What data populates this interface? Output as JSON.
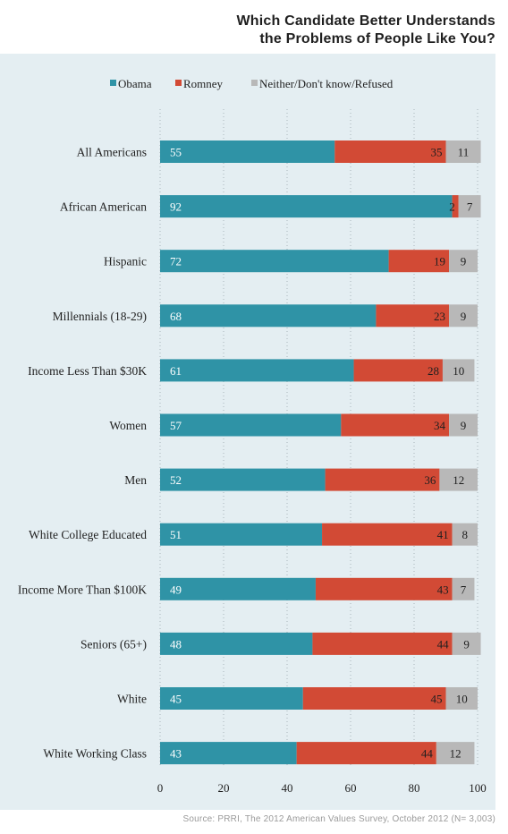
{
  "title_line1": "Which Candidate Better Understands",
  "title_line2": "the Problems of People Like You?",
  "source": "Source: PRRI, The 2012 American Values Survey, October 2012 (N= 3,003)",
  "chart_data": {
    "type": "bar",
    "stacked": true,
    "orientation": "horizontal",
    "categories": [
      "All Americans",
      "African American",
      "Hispanic",
      "Millennials (18-29)",
      "Income Less Than $30K",
      "Women",
      "Men",
      "White College Educated",
      "Income More Than $100K",
      "Seniors (65+)",
      "White",
      "White Working Class"
    ],
    "series": [
      {
        "name": "Obama",
        "color": "#2f93a6",
        "values": [
          55,
          92,
          72,
          68,
          61,
          57,
          52,
          51,
          49,
          48,
          45,
          43
        ]
      },
      {
        "name": "Romney",
        "color": "#d24a35",
        "values": [
          35,
          2,
          19,
          23,
          28,
          34,
          36,
          41,
          43,
          44,
          45,
          44
        ]
      },
      {
        "name": "Neither/Don't know/Refused",
        "color": "#b8b8b8",
        "values": [
          11,
          7,
          9,
          9,
          10,
          9,
          12,
          8,
          7,
          9,
          10,
          12
        ]
      }
    ],
    "xlim": [
      0,
      100
    ],
    "xticks": [
      0,
      20,
      40,
      60,
      80,
      100
    ],
    "legend_position": "top",
    "grid": true
  }
}
